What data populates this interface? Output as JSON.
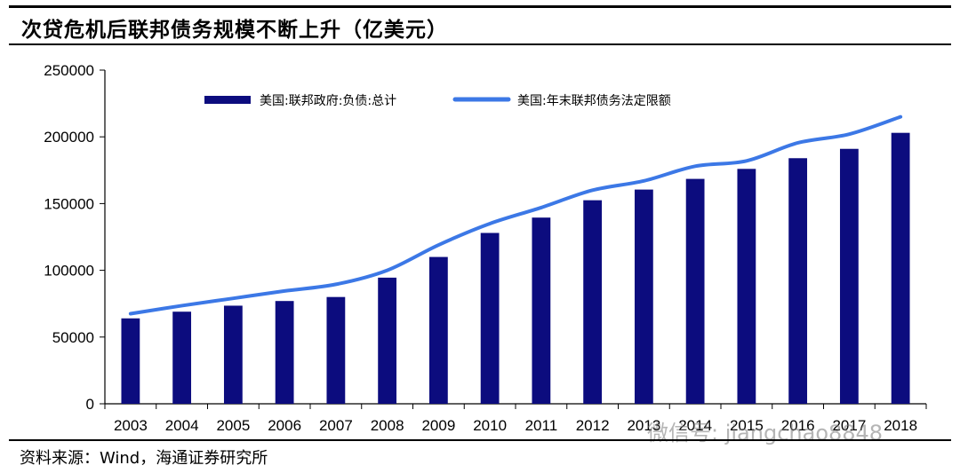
{
  "title": "次贷危机后联邦债务规模不断上升（亿美元）",
  "source": "资料来源：Wind，海通证券研究所",
  "watermark": "微信号: jiangchao8848",
  "colors": {
    "bar": "#0c0c7e",
    "line": "#3c78e6",
    "axis": "#000000"
  },
  "chart_data": {
    "type": "bar",
    "categories": [
      "2003",
      "2004",
      "2005",
      "2006",
      "2007",
      "2008",
      "2009",
      "2010",
      "2011",
      "2012",
      "2013",
      "2014",
      "2015",
      "2016",
      "2017",
      "2018"
    ],
    "ylim": [
      0,
      250000
    ],
    "yticks": [
      "0",
      "50000",
      "100000",
      "150000",
      "200000",
      "250000"
    ],
    "grid": false,
    "legend_position": "top",
    "series": [
      {
        "name": "美国:联邦政府:负债:总计",
        "kind": "bar",
        "values": [
          64000,
          69000,
          73500,
          77000,
          80000,
          94500,
          110000,
          128000,
          139500,
          152500,
          160500,
          168500,
          176000,
          184000,
          191000,
          203000
        ]
      },
      {
        "name": "美国:年末联邦债务法定限额",
        "kind": "line",
        "values": [
          67500,
          73500,
          79000,
          84500,
          89500,
          100000,
          119000,
          135000,
          147000,
          160000,
          167000,
          178000,
          182000,
          195500,
          202000,
          215000
        ]
      }
    ]
  }
}
